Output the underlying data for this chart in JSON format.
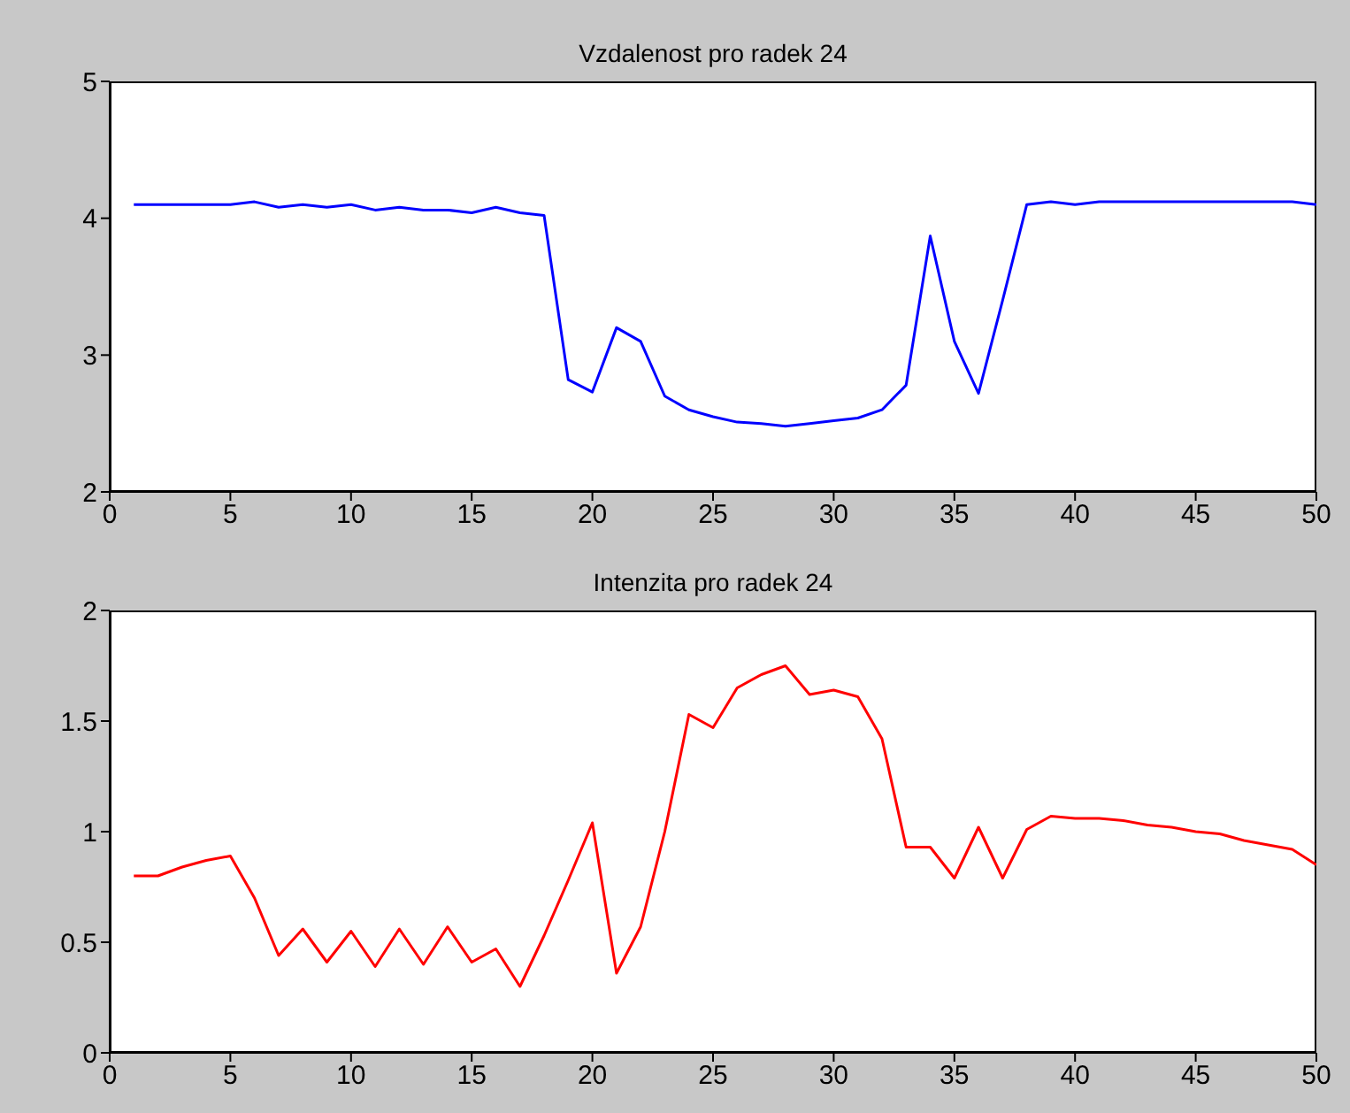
{
  "chart_data": [
    {
      "type": "line",
      "title": "Vzdalenost pro radek 24",
      "x": [
        1,
        2,
        3,
        4,
        5,
        6,
        7,
        8,
        9,
        10,
        11,
        12,
        13,
        14,
        15,
        16,
        17,
        18,
        19,
        20,
        21,
        22,
        23,
        24,
        25,
        26,
        27,
        28,
        29,
        30,
        31,
        32,
        33,
        34,
        35,
        36,
        37,
        38,
        39,
        40,
        41,
        42,
        43,
        44,
        45,
        46,
        47,
        48,
        49,
        50
      ],
      "xlim": [
        0,
        50
      ],
      "xticks": [
        0,
        5,
        10,
        15,
        20,
        25,
        30,
        35,
        40,
        45,
        50
      ],
      "ylim": [
        2,
        5
      ],
      "yticks": [
        2,
        3,
        4,
        5
      ],
      "marker": "none",
      "series": [
        {
          "color": "#0000ff",
          "values": [
            4.1,
            4.1,
            4.1,
            4.1,
            4.1,
            4.12,
            4.08,
            4.1,
            4.08,
            4.1,
            4.06,
            4.08,
            4.06,
            4.06,
            4.04,
            4.08,
            4.04,
            4.02,
            2.82,
            2.73,
            3.2,
            3.1,
            2.7,
            2.6,
            2.55,
            2.51,
            2.5,
            2.48,
            2.5,
            2.52,
            2.54,
            2.6,
            2.78,
            3.87,
            3.1,
            2.72,
            3.4,
            4.1,
            4.12,
            4.1,
            4.12,
            4.12,
            4.12,
            4.12,
            4.12,
            4.12,
            4.12,
            4.12,
            4.12,
            4.1
          ]
        }
      ]
    },
    {
      "type": "line",
      "title": "Intenzita pro radek 24",
      "x": [
        1,
        2,
        3,
        4,
        5,
        6,
        7,
        8,
        9,
        10,
        11,
        12,
        13,
        14,
        15,
        16,
        17,
        18,
        19,
        20,
        21,
        22,
        23,
        24,
        25,
        26,
        27,
        28,
        29,
        30,
        31,
        32,
        33,
        34,
        35,
        36,
        37,
        38,
        39,
        40,
        41,
        42,
        43,
        44,
        45,
        46,
        47,
        48,
        49,
        50
      ],
      "xlim": [
        0,
        50
      ],
      "xticks": [
        0,
        5,
        10,
        15,
        20,
        25,
        30,
        35,
        40,
        45,
        50
      ],
      "ylim": [
        0,
        2
      ],
      "yticks": [
        0,
        0.5,
        1,
        1.5,
        2
      ],
      "marker": "none",
      "series": [
        {
          "color": "#ff0000",
          "values": [
            0.8,
            0.8,
            0.84,
            0.87,
            0.89,
            0.7,
            0.44,
            0.56,
            0.41,
            0.55,
            0.39,
            0.56,
            0.4,
            0.57,
            0.41,
            0.47,
            0.3,
            0.53,
            0.78,
            1.04,
            0.36,
            0.57,
            1.0,
            1.53,
            1.47,
            1.65,
            1.71,
            1.75,
            1.62,
            1.64,
            1.61,
            1.42,
            0.93,
            0.93,
            0.79,
            1.02,
            0.79,
            1.01,
            1.07,
            1.06,
            1.06,
            1.05,
            1.03,
            1.02,
            1.0,
            0.99,
            0.96,
            0.94,
            0.92,
            0.85
          ]
        }
      ]
    }
  ]
}
